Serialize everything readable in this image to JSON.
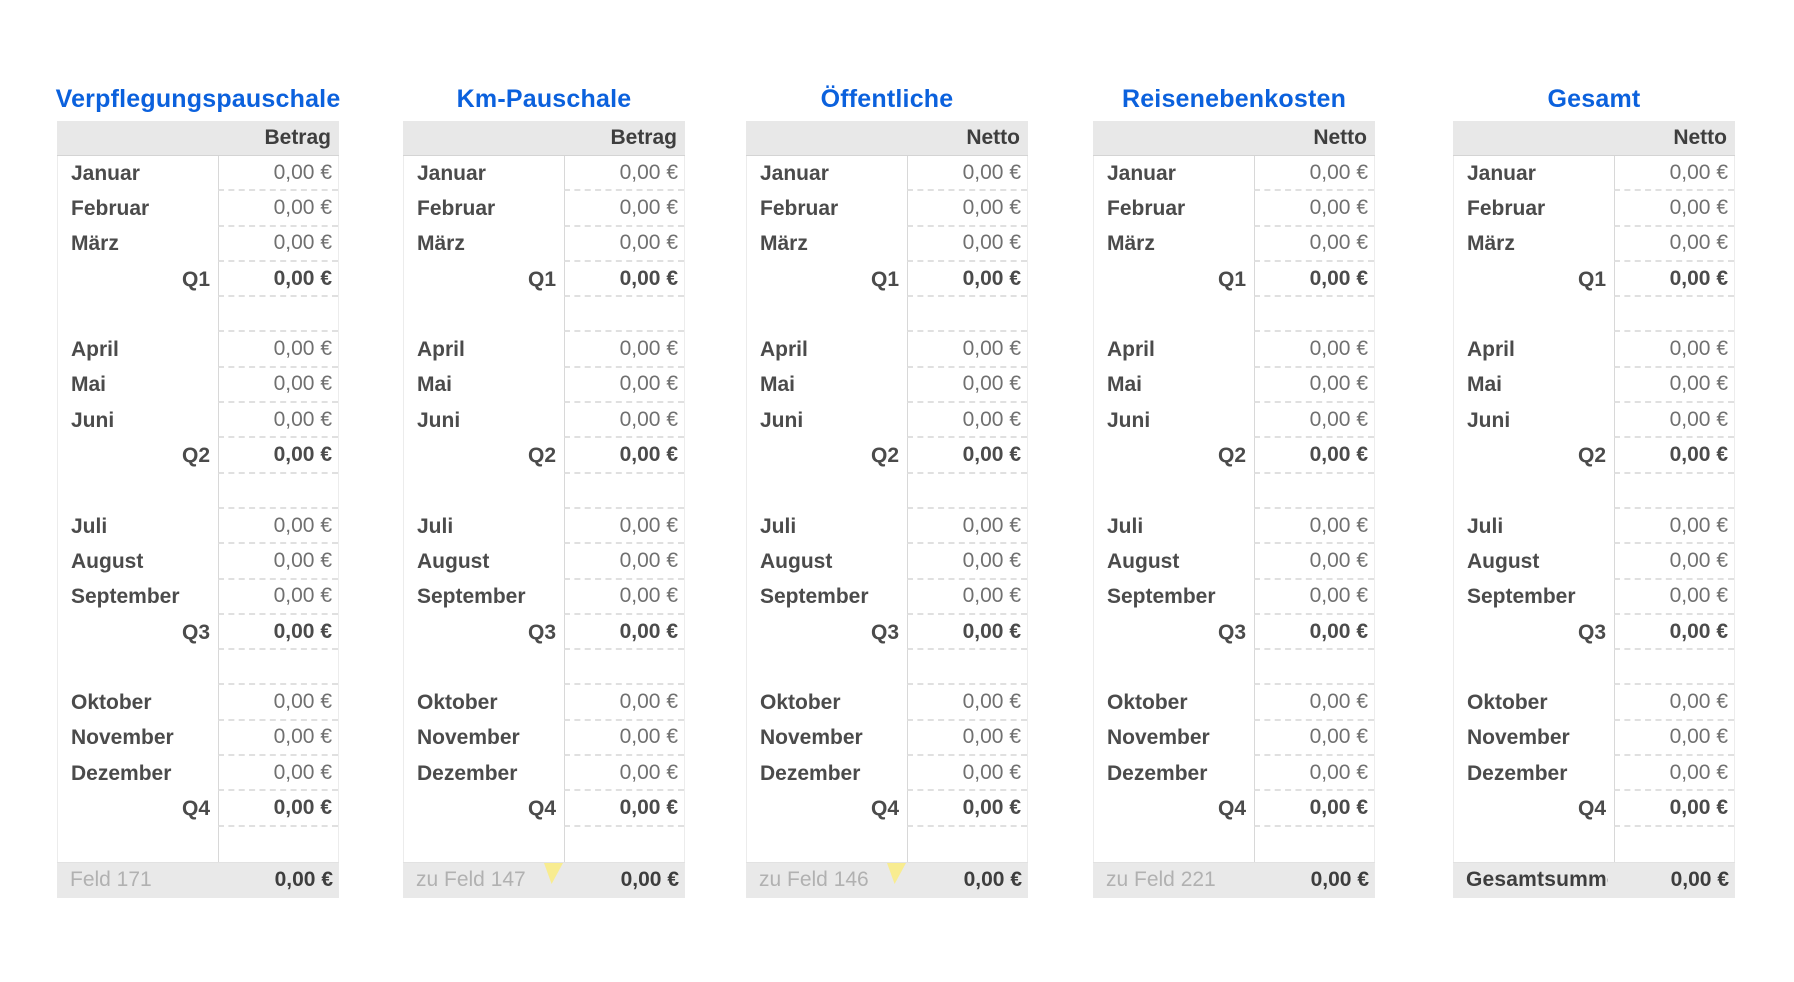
{
  "colors": {
    "title_blue": "#0b61dd",
    "header_footer_gray": "#e8e8e8",
    "comment_marker_yellow": "#f8ec90"
  },
  "tables": [
    {
      "title": "Verpflegungspauschale",
      "value_header": "Betrag",
      "rows": [
        {
          "type": "month",
          "label": "Januar",
          "value": "0,00 €"
        },
        {
          "type": "month",
          "label": "Februar",
          "value": "0,00 €"
        },
        {
          "type": "month",
          "label": "März",
          "value": "0,00 €"
        },
        {
          "type": "quarter",
          "label": "Q1",
          "value": "0,00 €"
        },
        {
          "type": "spacer",
          "label": "",
          "value": ""
        },
        {
          "type": "month",
          "label": "April",
          "value": "0,00 €"
        },
        {
          "type": "month",
          "label": "Mai",
          "value": "0,00 €"
        },
        {
          "type": "month",
          "label": "Juni",
          "value": "0,00 €"
        },
        {
          "type": "quarter",
          "label": "Q2",
          "value": "0,00 €"
        },
        {
          "type": "spacer",
          "label": "",
          "value": ""
        },
        {
          "type": "month",
          "label": "Juli",
          "value": "0,00 €"
        },
        {
          "type": "month",
          "label": "August",
          "value": "0,00 €"
        },
        {
          "type": "month",
          "label": "September",
          "value": "0,00 €"
        },
        {
          "type": "quarter",
          "label": "Q3",
          "value": "0,00 €"
        },
        {
          "type": "spacer",
          "label": "",
          "value": ""
        },
        {
          "type": "month",
          "label": "Oktober",
          "value": "0,00 €"
        },
        {
          "type": "month",
          "label": "November",
          "value": "0,00 €"
        },
        {
          "type": "month",
          "label": "Dezember",
          "value": "0,00 €"
        },
        {
          "type": "quarter",
          "label": "Q4",
          "value": "0,00 €"
        },
        {
          "type": "spacer",
          "label": "",
          "value": ""
        }
      ],
      "footer": {
        "label": "Feld 171",
        "value": "0,00 €",
        "comment_marker": false,
        "emphasis": false
      }
    },
    {
      "title": "Km-Pauschale",
      "value_header": "Betrag",
      "rows": [
        {
          "type": "month",
          "label": "Januar",
          "value": "0,00 €"
        },
        {
          "type": "month",
          "label": "Februar",
          "value": "0,00 €"
        },
        {
          "type": "month",
          "label": "März",
          "value": "0,00 €"
        },
        {
          "type": "quarter",
          "label": "Q1",
          "value": "0,00 €"
        },
        {
          "type": "spacer",
          "label": "",
          "value": ""
        },
        {
          "type": "month",
          "label": "April",
          "value": "0,00 €"
        },
        {
          "type": "month",
          "label": "Mai",
          "value": "0,00 €"
        },
        {
          "type": "month",
          "label": "Juni",
          "value": "0,00 €"
        },
        {
          "type": "quarter",
          "label": "Q2",
          "value": "0,00 €"
        },
        {
          "type": "spacer",
          "label": "",
          "value": ""
        },
        {
          "type": "month",
          "label": "Juli",
          "value": "0,00 €"
        },
        {
          "type": "month",
          "label": "August",
          "value": "0,00 €"
        },
        {
          "type": "month",
          "label": "September",
          "value": "0,00 €"
        },
        {
          "type": "quarter",
          "label": "Q3",
          "value": "0,00 €"
        },
        {
          "type": "spacer",
          "label": "",
          "value": ""
        },
        {
          "type": "month",
          "label": "Oktober",
          "value": "0,00 €"
        },
        {
          "type": "month",
          "label": "November",
          "value": "0,00 €"
        },
        {
          "type": "month",
          "label": "Dezember",
          "value": "0,00 €"
        },
        {
          "type": "quarter",
          "label": "Q4",
          "value": "0,00 €"
        },
        {
          "type": "spacer",
          "label": "",
          "value": ""
        }
      ],
      "footer": {
        "label": "zu Feld 147",
        "value": "0,00 €",
        "comment_marker": true,
        "emphasis": false
      }
    },
    {
      "title": "Öffentliche",
      "value_header": "Netto",
      "rows": [
        {
          "type": "month",
          "label": "Januar",
          "value": "0,00 €"
        },
        {
          "type": "month",
          "label": "Februar",
          "value": "0,00 €"
        },
        {
          "type": "month",
          "label": "März",
          "value": "0,00 €"
        },
        {
          "type": "quarter",
          "label": "Q1",
          "value": "0,00 €"
        },
        {
          "type": "spacer",
          "label": "",
          "value": ""
        },
        {
          "type": "month",
          "label": "April",
          "value": "0,00 €"
        },
        {
          "type": "month",
          "label": "Mai",
          "value": "0,00 €"
        },
        {
          "type": "month",
          "label": "Juni",
          "value": "0,00 €"
        },
        {
          "type": "quarter",
          "label": "Q2",
          "value": "0,00 €"
        },
        {
          "type": "spacer",
          "label": "",
          "value": ""
        },
        {
          "type": "month",
          "label": "Juli",
          "value": "0,00 €"
        },
        {
          "type": "month",
          "label": "August",
          "value": "0,00 €"
        },
        {
          "type": "month",
          "label": "September",
          "value": "0,00 €"
        },
        {
          "type": "quarter",
          "label": "Q3",
          "value": "0,00 €"
        },
        {
          "type": "spacer",
          "label": "",
          "value": ""
        },
        {
          "type": "month",
          "label": "Oktober",
          "value": "0,00 €"
        },
        {
          "type": "month",
          "label": "November",
          "value": "0,00 €"
        },
        {
          "type": "month",
          "label": "Dezember",
          "value": "0,00 €"
        },
        {
          "type": "quarter",
          "label": "Q4",
          "value": "0,00 €"
        },
        {
          "type": "spacer",
          "label": "",
          "value": ""
        }
      ],
      "footer": {
        "label": "zu Feld 146",
        "value": "0,00 €",
        "comment_marker": true,
        "emphasis": false
      }
    },
    {
      "title": "Reisenebenkosten",
      "value_header": "Netto",
      "rows": [
        {
          "type": "month",
          "label": "Januar",
          "value": "0,00 €"
        },
        {
          "type": "month",
          "label": "Februar",
          "value": "0,00 €"
        },
        {
          "type": "month",
          "label": "März",
          "value": "0,00 €"
        },
        {
          "type": "quarter",
          "label": "Q1",
          "value": "0,00 €"
        },
        {
          "type": "spacer",
          "label": "",
          "value": ""
        },
        {
          "type": "month",
          "label": "April",
          "value": "0,00 €"
        },
        {
          "type": "month",
          "label": "Mai",
          "value": "0,00 €"
        },
        {
          "type": "month",
          "label": "Juni",
          "value": "0,00 €"
        },
        {
          "type": "quarter",
          "label": "Q2",
          "value": "0,00 €"
        },
        {
          "type": "spacer",
          "label": "",
          "value": ""
        },
        {
          "type": "month",
          "label": "Juli",
          "value": "0,00 €"
        },
        {
          "type": "month",
          "label": "August",
          "value": "0,00 €"
        },
        {
          "type": "month",
          "label": "September",
          "value": "0,00 €"
        },
        {
          "type": "quarter",
          "label": "Q3",
          "value": "0,00 €"
        },
        {
          "type": "spacer",
          "label": "",
          "value": ""
        },
        {
          "type": "month",
          "label": "Oktober",
          "value": "0,00 €"
        },
        {
          "type": "month",
          "label": "November",
          "value": "0,00 €"
        },
        {
          "type": "month",
          "label": "Dezember",
          "value": "0,00 €"
        },
        {
          "type": "quarter",
          "label": "Q4",
          "value": "0,00 €"
        },
        {
          "type": "spacer",
          "label": "",
          "value": ""
        }
      ],
      "footer": {
        "label": "zu Feld 221",
        "value": "0,00 €",
        "comment_marker": false,
        "emphasis": false
      }
    },
    {
      "title": "Gesamt",
      "value_header": "Netto",
      "rows": [
        {
          "type": "month",
          "label": "Januar",
          "value": "0,00 €"
        },
        {
          "type": "month",
          "label": "Februar",
          "value": "0,00 €"
        },
        {
          "type": "month",
          "label": "März",
          "value": "0,00 €"
        },
        {
          "type": "quarter",
          "label": "Q1",
          "value": "0,00 €"
        },
        {
          "type": "spacer",
          "label": "",
          "value": ""
        },
        {
          "type": "month",
          "label": "April",
          "value": "0,00 €"
        },
        {
          "type": "month",
          "label": "Mai",
          "value": "0,00 €"
        },
        {
          "type": "month",
          "label": "Juni",
          "value": "0,00 €"
        },
        {
          "type": "quarter",
          "label": "Q2",
          "value": "0,00 €"
        },
        {
          "type": "spacer",
          "label": "",
          "value": ""
        },
        {
          "type": "month",
          "label": "Juli",
          "value": "0,00 €"
        },
        {
          "type": "month",
          "label": "August",
          "value": "0,00 €"
        },
        {
          "type": "month",
          "label": "September",
          "value": "0,00 €"
        },
        {
          "type": "quarter",
          "label": "Q3",
          "value": "0,00 €"
        },
        {
          "type": "spacer",
          "label": "",
          "value": ""
        },
        {
          "type": "month",
          "label": "Oktober",
          "value": "0,00 €"
        },
        {
          "type": "month",
          "label": "November",
          "value": "0,00 €"
        },
        {
          "type": "month",
          "label": "Dezember",
          "value": "0,00 €"
        },
        {
          "type": "quarter",
          "label": "Q4",
          "value": "0,00 €"
        },
        {
          "type": "spacer",
          "label": "",
          "value": ""
        }
      ],
      "footer": {
        "label": "Gesamtsumme",
        "value": "0,00 €",
        "comment_marker": false,
        "emphasis": true
      }
    }
  ]
}
